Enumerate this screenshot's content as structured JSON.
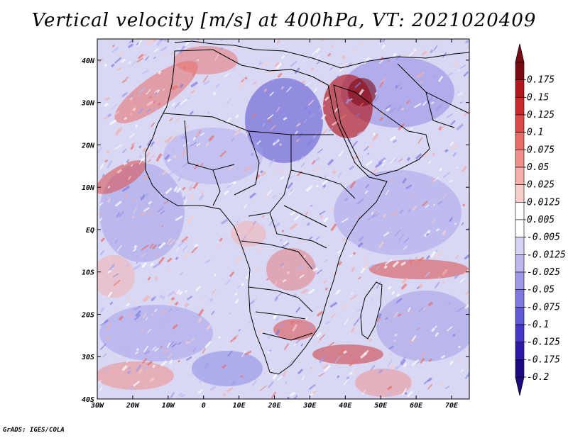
{
  "title": "Vertical velocity [m/s] at 400hPa, VT: 2021020409",
  "credit": "GrADS: IGES/COLA",
  "map": {
    "lon_ticks": [
      "30W",
      "20W",
      "10W",
      "0",
      "10E",
      "20E",
      "30E",
      "40E",
      "50E",
      "60E",
      "70E"
    ],
    "lat_ticks": [
      "40N",
      "30N",
      "20N",
      "10N",
      "EQ",
      "10S",
      "20S",
      "30S",
      "40S"
    ],
    "lon_range": [
      -30,
      75
    ],
    "lat_range": [
      -40,
      45
    ],
    "field": "vertical velocity",
    "level": "400hPa",
    "valid_time": "2021020409"
  },
  "colorbar": {
    "labels": [
      "0.175",
      "0.15",
      "0.125",
      "0.1",
      "0.075",
      "0.05",
      "0.025",
      "0.0125",
      "0.005",
      "-0.005",
      "-0.0125",
      "-0.025",
      "-0.05",
      "-0.075",
      "-0.1",
      "-0.125",
      "-0.175",
      "-0.2"
    ],
    "colors": [
      "#7a0a14",
      "#b3161c",
      "#cc2a2a",
      "#dd4a46",
      "#e86d68",
      "#f08e8a",
      "#f5aeaa",
      "#f9cdca",
      "#ffffff",
      "#ffffff",
      "#d6d4f5",
      "#bbb8f0",
      "#9e9ae9",
      "#8079e0",
      "#6259d6",
      "#4537c8",
      "#2d1aa8",
      "#1c0a80"
    ]
  }
}
